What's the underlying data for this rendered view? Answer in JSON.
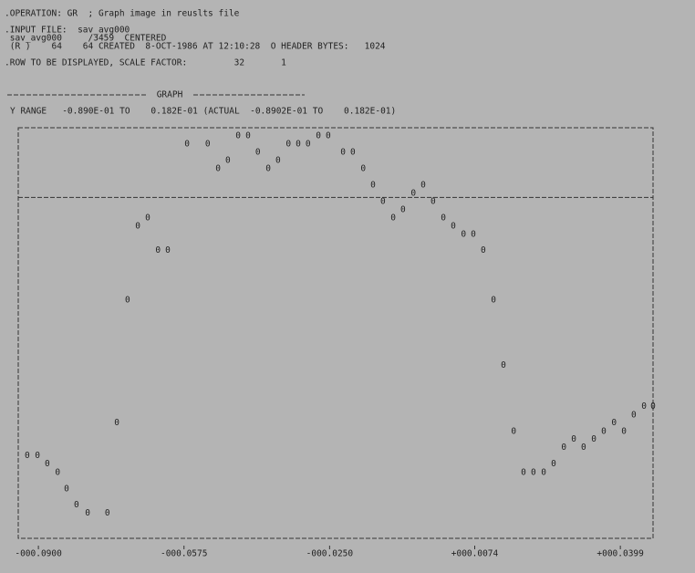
{
  "chart_data": {
    "type": "scatter",
    "header_lines": [
      ".OPERATION: GR  ; Graph image in reuslts file",
      ".INPUT FILE:  sav_avg000",
      " sav_avg000     /3459  CENTERED",
      " (R )    64    64 CREATED  8-OCT-1986 AT 12:10:28  O HEADER BYTES:   1024",
      ".ROW TO BE DISPLAYED, SCALE FACTOR:         32       1"
    ],
    "title": "GRAPH",
    "subtitle": "Y RANGE   -0.890E-01 TO    0.182E-01 (ACTUAL  -0.8902E-01 TO    0.182E-01)",
    "marker": "0",
    "color": "#222222",
    "xlim": [
      -0.0945,
      0.0472
    ],
    "ylim": [
      -0.089,
      0.0182
    ],
    "xticks": [
      {
        "value": -0.09,
        "label": "-000.0900"
      },
      {
        "value": -0.0575,
        "label": "-000.0575"
      },
      {
        "value": -0.025,
        "label": "-000.0250"
      },
      {
        "value": 0.0074,
        "label": "+000.0074"
      },
      {
        "value": 0.0399,
        "label": "+000.0399"
      }
    ],
    "x": [
      -0.0925,
      -0.0902,
      -0.088,
      -0.0857,
      -0.0837,
      -0.0815,
      -0.079,
      -0.0746,
      -0.0725,
      -0.0701,
      -0.0678,
      -0.0656,
      -0.0633,
      -0.0611,
      -0.0568,
      -0.0522,
      -0.0499,
      -0.0477,
      -0.0454,
      -0.0432,
      -0.041,
      -0.0387,
      -0.0365,
      -0.0342,
      -0.032,
      -0.0298,
      -0.0275,
      -0.0253,
      -0.022,
      -0.0198,
      -0.0175,
      -0.0153,
      -0.0131,
      -0.0108,
      -0.0086,
      -0.0063,
      -0.0041,
      -0.0019,
      0.0004,
      0.0026,
      0.0049,
      0.0071,
      0.0093,
      0.0116,
      0.0138,
      0.0161,
      0.0183,
      0.0205,
      0.0228,
      0.025,
      0.0273,
      0.0295,
      0.0317,
      0.034,
      0.0362,
      0.0385,
      0.0407,
      0.0429,
      0.0452,
      0.0472
    ],
    "values": [
      -0.0675,
      -0.0675,
      -0.0696,
      -0.0718,
      -0.0761,
      -0.0803,
      -0.0825,
      -0.0825,
      -0.0589,
      -0.0268,
      -0.0075,
      -0.0054,
      -0.0139,
      -0.0139,
      0.0139,
      0.0139,
      0.0075,
      0.0096,
      0.0161,
      0.0161,
      0.0118,
      0.0075,
      0.0096,
      0.0139,
      0.0139,
      0.0139,
      0.0161,
      0.0161,
      0.0118,
      0.0118,
      0.0075,
      0.0032,
      -0.0011,
      -0.0054,
      -0.0032,
      0.0011,
      0.0032,
      -0.0011,
      -0.0054,
      -0.0075,
      -0.0097,
      -0.0097,
      -0.0139,
      -0.0268,
      -0.0439,
      -0.0611,
      -0.0718,
      -0.0718,
      -0.0718,
      -0.0696,
      -0.0653,
      -0.0632,
      -0.0653,
      -0.0632,
      -0.0611,
      -0.0589,
      -0.0611,
      -0.0568,
      -0.0546,
      -0.0546
    ]
  }
}
